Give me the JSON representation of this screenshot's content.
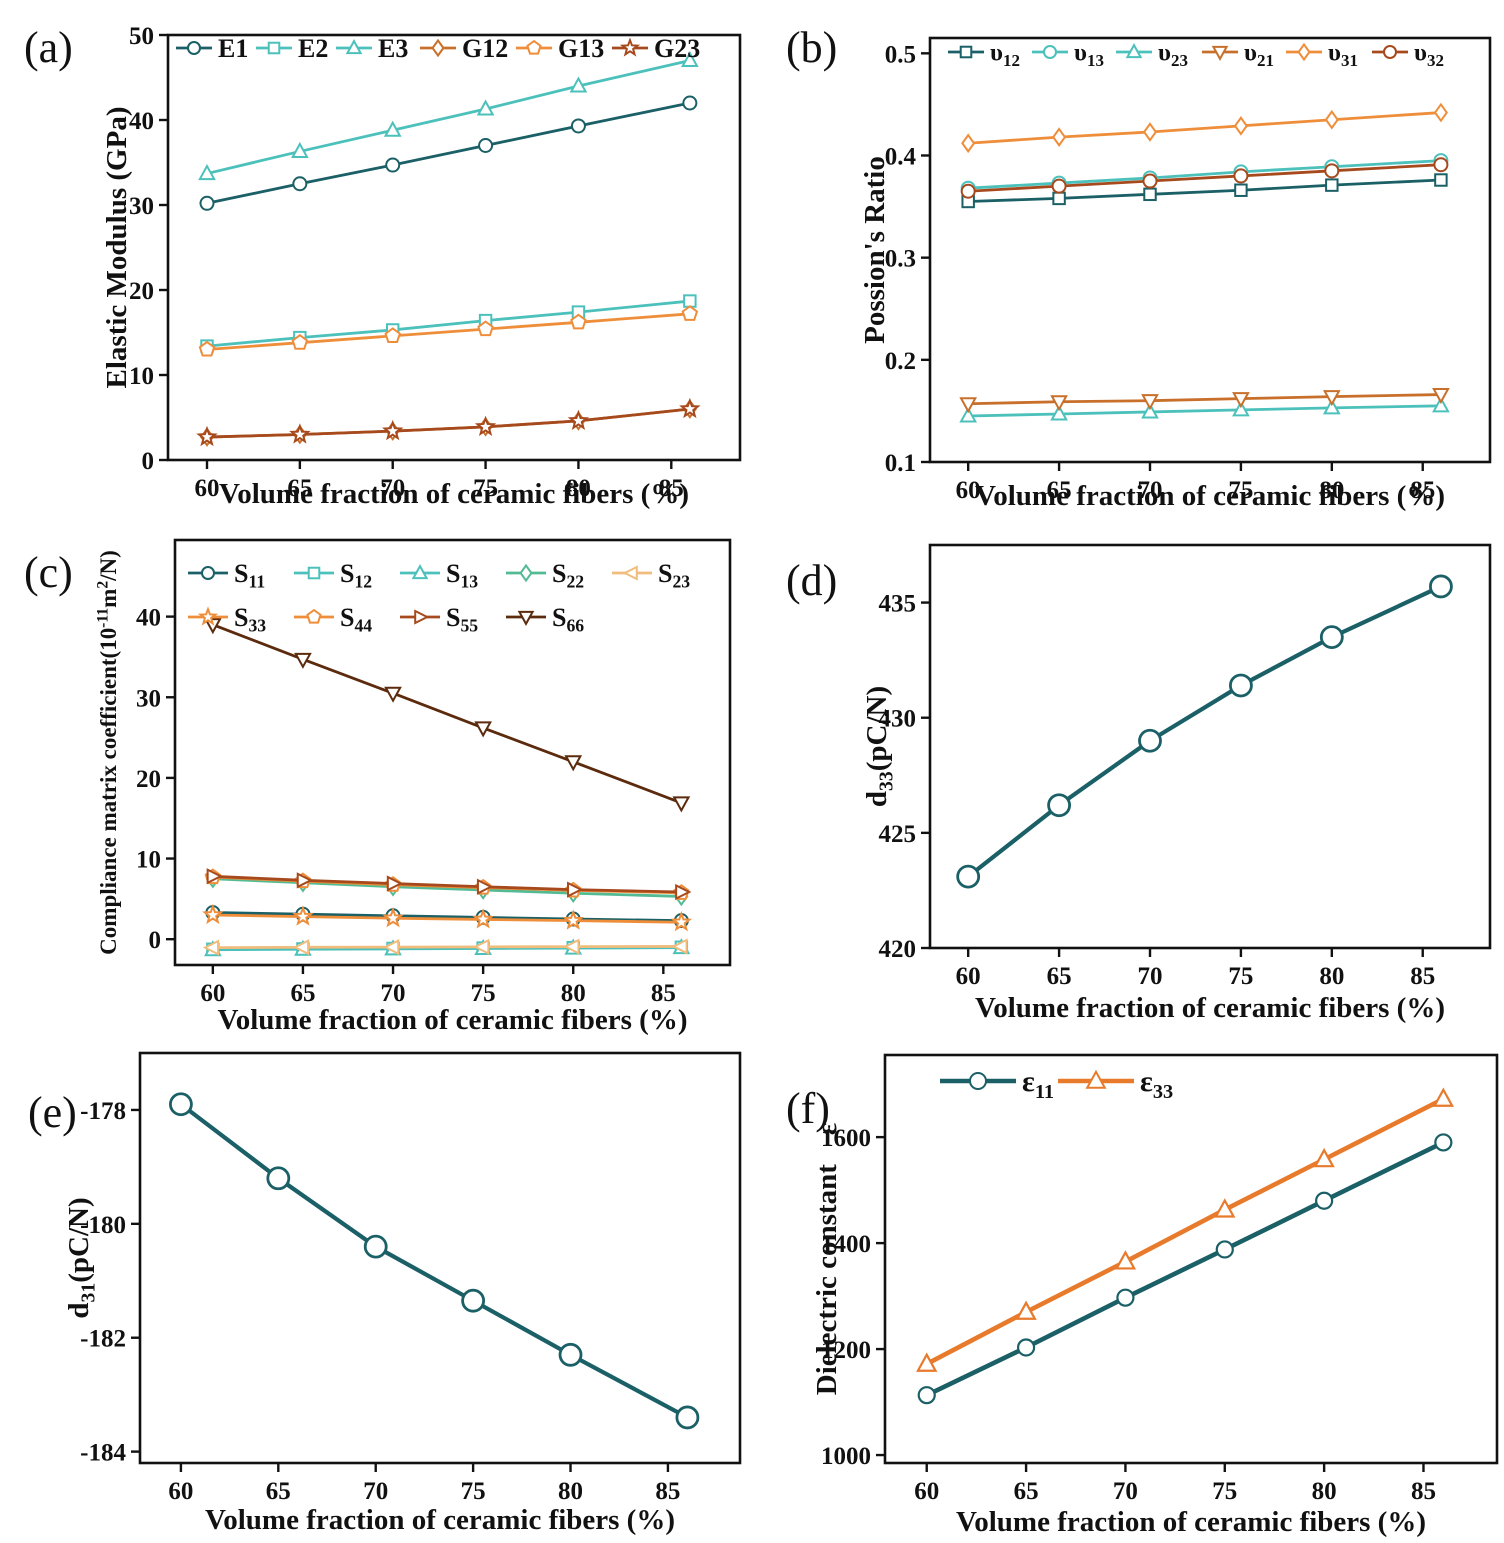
{
  "figure": {
    "background": "#ffffff",
    "x_axis_label": "Volume fraction of ceramic fibers (%)"
  },
  "palette": {
    "dark_teal": "#1a6066",
    "teal": "#4cc1bc",
    "green": "#53bb94",
    "orange": "#ef8e3a",
    "light_orange": "#f0bd7d",
    "rust": "#c8702b",
    "dark_red": "#a64a1d",
    "dark_brown": "#5c2b0d",
    "axis": "#111111"
  },
  "chart_data": [
    {
      "panel": "(a)",
      "type": "line",
      "xlabel": "Volume fraction of ceramic fibers (%)",
      "ylabel": "Elastic Modulus (GPa)",
      "x": [
        60,
        65,
        70,
        75,
        80,
        86
      ],
      "xticks": [
        60,
        65,
        70,
        75,
        80,
        85
      ],
      "xlim": [
        57.9,
        88.7
      ],
      "ylim": [
        0,
        50
      ],
      "yticks": [
        0,
        10,
        20,
        30,
        40,
        50
      ],
      "ytick_labels": [
        "0",
        "10",
        "20",
        "30",
        "40",
        "50"
      ],
      "grid": false,
      "legend_position": "top-row-inside",
      "series": [
        {
          "name": "E1",
          "label": "E1",
          "color": "#1a6066",
          "marker": "circle",
          "values": [
            30.2,
            32.5,
            34.7,
            37.0,
            39.3,
            42.0
          ]
        },
        {
          "name": "E2",
          "label": "E2",
          "color": "#4cc1bc",
          "marker": "square",
          "values": [
            13.4,
            14.4,
            15.3,
            16.4,
            17.4,
            18.7
          ]
        },
        {
          "name": "E3",
          "label": "E3",
          "color": "#4cc1bc",
          "marker": "triangle-up",
          "values": [
            33.7,
            36.3,
            38.8,
            41.3,
            44.0,
            47.0
          ]
        },
        {
          "name": "G12",
          "label": "G12",
          "color": "#c8702b",
          "marker": "diamond",
          "values": [
            2.7,
            3.0,
            3.4,
            3.9,
            4.6,
            6.0
          ]
        },
        {
          "name": "G13",
          "label": "G13",
          "color": "#ef8e3a",
          "marker": "pentagon",
          "values": [
            13.0,
            13.8,
            14.6,
            15.4,
            16.2,
            17.2
          ]
        },
        {
          "name": "G23",
          "label": "G23",
          "color": "#a64a1d",
          "marker": "star",
          "values": [
            2.7,
            3.0,
            3.4,
            3.9,
            4.6,
            6.0
          ]
        }
      ]
    },
    {
      "panel": "(b)",
      "type": "line",
      "xlabel": "Volume fraction of ceramic fibers (%)",
      "ylabel": "Possion's Ratio",
      "x": [
        60,
        65,
        70,
        75,
        80,
        86
      ],
      "xticks": [
        60,
        65,
        70,
        75,
        80,
        85
      ],
      "xlim": [
        57.9,
        88.7
      ],
      "ylim": [
        0.1,
        0.515
      ],
      "yticks": [
        0.1,
        0.2,
        0.3,
        0.4,
        0.5
      ],
      "ytick_labels": [
        "0.1",
        "0.2",
        "0.3",
        "0.4",
        "0.5"
      ],
      "grid": false,
      "legend_position": "top-row-inside",
      "series": [
        {
          "name": "v12",
          "label": "υ_{12}",
          "color": "#1a6066",
          "marker": "square",
          "values": [
            0.355,
            0.358,
            0.362,
            0.366,
            0.371,
            0.376
          ]
        },
        {
          "name": "v13",
          "label": "υ_{13}",
          "color": "#4cc1bc",
          "marker": "circle",
          "values": [
            0.368,
            0.373,
            0.378,
            0.384,
            0.389,
            0.395
          ]
        },
        {
          "name": "v23",
          "label": "υ_{23}",
          "color": "#4cc1bc",
          "marker": "triangle-up",
          "values": [
            0.145,
            0.147,
            0.149,
            0.151,
            0.153,
            0.155
          ]
        },
        {
          "name": "v21",
          "label": "υ_{21}",
          "color": "#c8702b",
          "marker": "triangle-down",
          "values": [
            0.157,
            0.159,
            0.16,
            0.162,
            0.164,
            0.166
          ]
        },
        {
          "name": "v31",
          "label": "υ_{31}",
          "color": "#ef8e3a",
          "marker": "diamond",
          "values": [
            0.412,
            0.418,
            0.423,
            0.429,
            0.435,
            0.442
          ]
        },
        {
          "name": "v32",
          "label": "υ_{32}",
          "color": "#a64a1d",
          "marker": "circle",
          "values": [
            0.365,
            0.37,
            0.375,
            0.38,
            0.385,
            0.391
          ]
        }
      ]
    },
    {
      "panel": "(c)",
      "type": "line",
      "xlabel": "Volume fraction of ceramic fibers (%)",
      "ylabel": "Compliance matrix coefficient(10^{-11}m^{2}/N)",
      "x": [
        60,
        65,
        70,
        75,
        80,
        86
      ],
      "xticks": [
        60,
        65,
        70,
        75,
        80,
        85
      ],
      "xlim": [
        57.9,
        88.7
      ],
      "ylim": [
        -3.2,
        49.5
      ],
      "yticks": [
        0,
        10,
        20,
        30,
        40
      ],
      "ytick_labels": [
        "0",
        "10",
        "20",
        "30",
        "40"
      ],
      "grid": false,
      "legend_position": "top-two-rows-inside",
      "series": [
        {
          "name": "S11",
          "label": "S_{11}",
          "color": "#1a6066",
          "marker": "circle",
          "values": [
            3.3,
            3.1,
            2.9,
            2.7,
            2.5,
            2.3
          ]
        },
        {
          "name": "S12",
          "label": "S_{12}",
          "color": "#4cc1bc",
          "marker": "square",
          "values": [
            -1.25,
            -1.2,
            -1.15,
            -1.1,
            -1.05,
            -1.0
          ]
        },
        {
          "name": "S13",
          "label": "S_{13}",
          "color": "#4cc1bc",
          "marker": "triangle-up",
          "values": [
            -1.3,
            -1.25,
            -1.2,
            -1.15,
            -1.1,
            -1.05
          ]
        },
        {
          "name": "S22",
          "label": "S_{22}",
          "color": "#53bb94",
          "marker": "diamond",
          "values": [
            7.5,
            7.0,
            6.5,
            6.1,
            5.7,
            5.3
          ]
        },
        {
          "name": "S23",
          "label": "S_{23}",
          "color": "#f0bd7d",
          "marker": "triangle-left",
          "values": [
            -1.05,
            -1.0,
            -0.98,
            -0.95,
            -0.92,
            -0.9
          ]
        },
        {
          "name": "S33",
          "label": "S_{33}",
          "color": "#ef8e3a",
          "marker": "star",
          "values": [
            3.0,
            2.8,
            2.6,
            2.45,
            2.3,
            2.1
          ]
        },
        {
          "name": "S44",
          "label": "S_{44}",
          "color": "#ef8e3a",
          "marker": "pentagon",
          "values": [
            7.7,
            7.2,
            6.75,
            6.4,
            6.05,
            5.75
          ]
        },
        {
          "name": "S55",
          "label": "S_{55}",
          "color": "#a64a1d",
          "marker": "triangle-right",
          "values": [
            7.8,
            7.3,
            6.9,
            6.5,
            6.15,
            5.85
          ]
        },
        {
          "name": "S66",
          "label": "S_{66}",
          "color": "#5c2b0d",
          "marker": "triangle-down",
          "values": [
            39.0,
            34.7,
            30.5,
            26.2,
            22.0,
            16.9
          ]
        }
      ]
    },
    {
      "panel": "(d)",
      "type": "line",
      "xlabel": "Volume fraction of ceramic fibers (%)",
      "ylabel": "d_{33}(pC/N)",
      "x": [
        60,
        65,
        70,
        75,
        80,
        86
      ],
      "xticks": [
        60,
        65,
        70,
        75,
        80,
        85
      ],
      "xlim": [
        57.9,
        88.7
      ],
      "ylim": [
        420,
        437.5
      ],
      "yticks": [
        420,
        425,
        430,
        435
      ],
      "ytick_labels": [
        "420",
        "425",
        "430",
        "435"
      ],
      "grid": false,
      "legend_position": "none",
      "series": [
        {
          "name": "d33",
          "label": "d_{33}",
          "color": "#1a6066",
          "marker": "circle",
          "values": [
            423.1,
            426.2,
            429.0,
            431.4,
            433.5,
            435.7
          ]
        }
      ]
    },
    {
      "panel": "(e)",
      "type": "line",
      "xlabel": "Volume fraction of ceramic fibers (%)",
      "ylabel": "d_{31}(pC/N)",
      "x": [
        60,
        65,
        70,
        75,
        80,
        86
      ],
      "xticks": [
        60,
        65,
        70,
        75,
        80,
        85
      ],
      "xlim": [
        57.9,
        88.7
      ],
      "ylim": [
        -184.2,
        -177.0
      ],
      "yticks": [
        -184,
        -182,
        -180,
        -178
      ],
      "ytick_labels": [
        "-184",
        "-182",
        "-180",
        "-178"
      ],
      "grid": false,
      "legend_position": "none",
      "series": [
        {
          "name": "d31",
          "label": "d_{31}",
          "color": "#1a6066",
          "marker": "circle",
          "values": [
            -177.9,
            -179.2,
            -180.4,
            -181.35,
            -182.3,
            -183.4
          ]
        }
      ]
    },
    {
      "panel": "(f)",
      "type": "line",
      "xlabel": "Volume fraction of ceramic fibers (%)",
      "ylabel": "Dielectric constant ε",
      "x": [
        60,
        65,
        70,
        75,
        80,
        86
      ],
      "xticks": [
        60,
        65,
        70,
        75,
        80,
        85
      ],
      "xlim": [
        57.9,
        88.7
      ],
      "ylim": [
        985,
        1755
      ],
      "yticks": [
        1000,
        1200,
        1400,
        1600
      ],
      "ytick_labels": [
        "1000",
        "1200",
        "1400",
        "1600"
      ],
      "grid": false,
      "legend_position": "top-center-inside",
      "series": [
        {
          "name": "eps11",
          "label": "ε_{11}",
          "color": "#1a6066",
          "marker": "circle",
          "values": [
            1113,
            1203,
            1297,
            1388,
            1480,
            1590
          ]
        },
        {
          "name": "eps33",
          "label": "ε_{33}",
          "color": "#e87a2c",
          "marker": "triangle-up",
          "values": [
            1172,
            1270,
            1365,
            1463,
            1558,
            1672
          ]
        }
      ]
    }
  ]
}
